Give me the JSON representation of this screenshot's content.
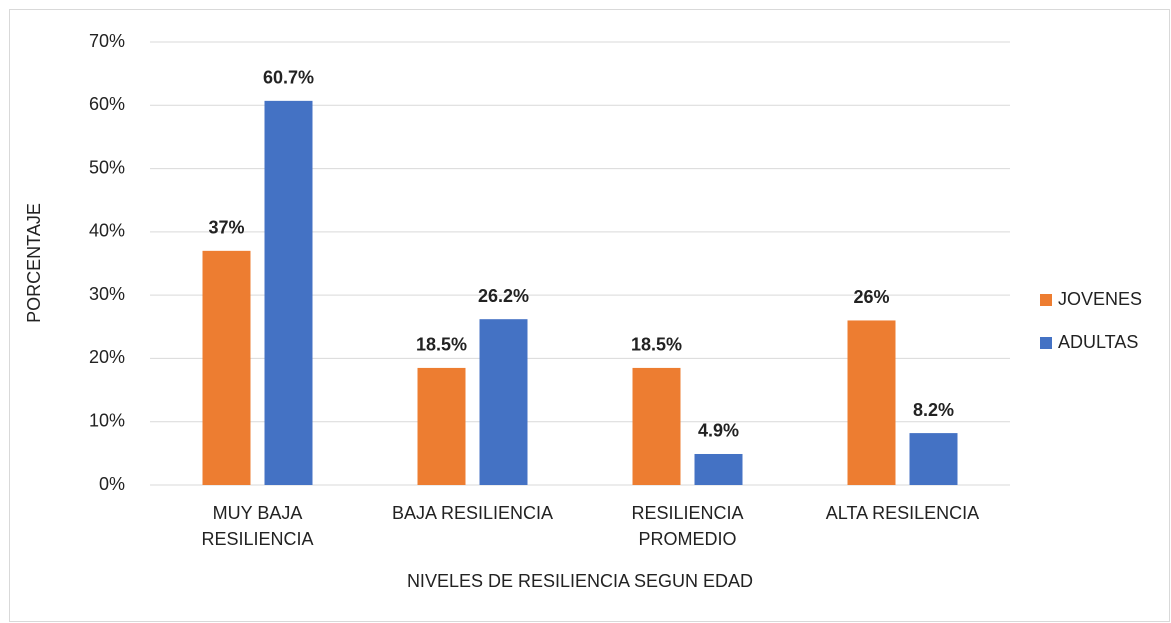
{
  "chart_data": {
    "type": "bar",
    "categories": [
      "MUY BAJA RESILIENCIA",
      "BAJA RESILIENCIA",
      "RESILIENCIA PROMEDIO",
      "ALTA RESILENCIA"
    ],
    "series": [
      {
        "name": "JOVENES",
        "color": "#ed7d31",
        "values": [
          37,
          18.5,
          18.5,
          26
        ],
        "value_labels": [
          "37%",
          "18.5%",
          "18.5%",
          "26%"
        ]
      },
      {
        "name": "ADULTAS",
        "color": "#4472c4",
        "values": [
          60.7,
          26.2,
          4.9,
          8.2
        ],
        "value_labels": [
          "60.7%",
          "26.2%",
          "4.9%",
          "8.2%"
        ]
      }
    ],
    "xlabel": "NIVELES DE RESILIENCIA SEGUN EDAD",
    "ylabel": "PORCENTAJE",
    "ylim": [
      0,
      70
    ],
    "yticks": [
      {
        "value": 0,
        "label": "0%"
      },
      {
        "value": 10,
        "label": "10%"
      },
      {
        "value": 20,
        "label": "20%"
      },
      {
        "value": 30,
        "label": "30%"
      },
      {
        "value": 40,
        "label": "40%"
      },
      {
        "value": 50,
        "label": "50%"
      },
      {
        "value": 60,
        "label": "60%"
      },
      {
        "value": 70,
        "label": "70%"
      }
    ],
    "grid": true,
    "legend": "right"
  }
}
